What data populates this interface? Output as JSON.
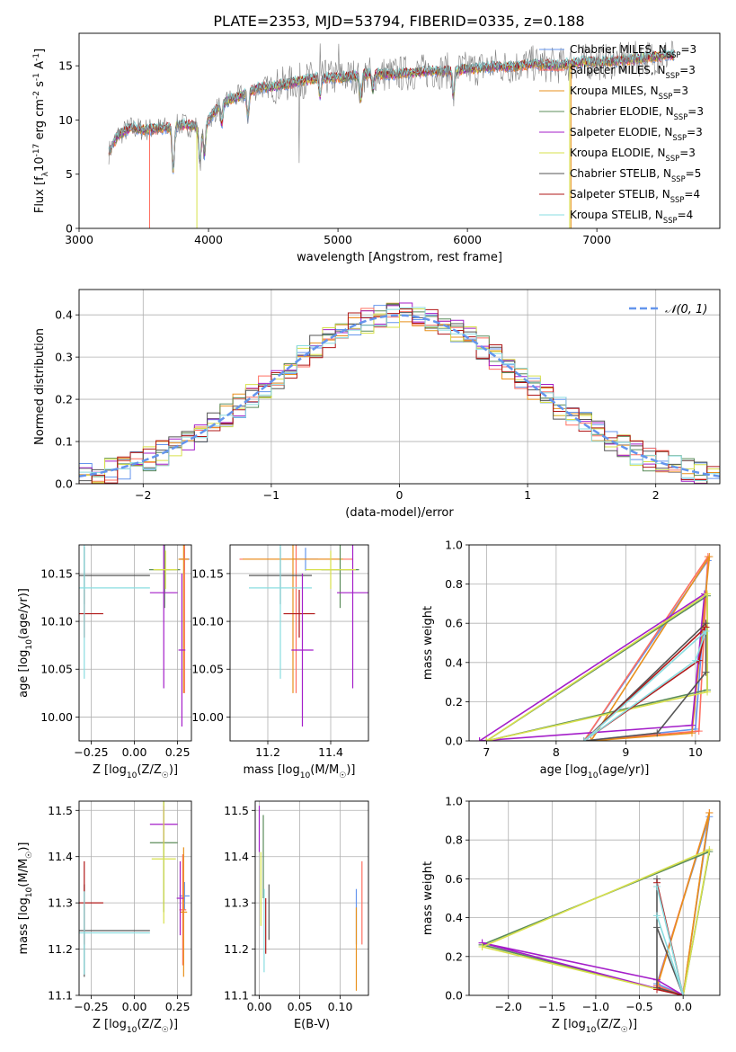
{
  "chart_data": [
    {
      "id": "spectrum",
      "type": "line",
      "title": "PLATE=2353, MJD=53794, FIBERID=0335, z=0.188",
      "xlabel": "wavelength [Angstrom, rest frame]",
      "ylabel": "Flux [f_λ10^-17 erg cm^-2 s^-1 A^-1]",
      "xlim": [
        3000,
        7950
      ],
      "ylim": [
        0,
        18
      ],
      "xticks": [
        3000,
        4000,
        5000,
        6000,
        7000
      ],
      "yticks": [
        0,
        5,
        10,
        15
      ],
      "grid": false,
      "legend_position": "right",
      "data_color": "#808080",
      "series": [
        {
          "name": "Chabrier MILES, N_SSP=3",
          "color": "#6495ed"
        },
        {
          "name": "Salpeter MILES, N_SSP=3",
          "color": "#ff6f61"
        },
        {
          "name": "Kroupa MILES, N_SSP=3",
          "color": "#e8901c"
        },
        {
          "name": "Chabrier ELODIE, N_SSP=3",
          "color": "#5b8c5a"
        },
        {
          "name": "Salpeter ELODIE, N_SSP=3",
          "color": "#a41ec9"
        },
        {
          "name": "Kroupa ELODIE, N_SSP=3",
          "color": "#d7e04b"
        },
        {
          "name": "Chabrier STELIB, N_SSP=5",
          "color": "#555555"
        },
        {
          "name": "Salpeter STELIB, N_SSP=4",
          "color": "#b01818"
        },
        {
          "name": "Kroupa STELIB, N_SSP=4",
          "color": "#8adde0"
        }
      ],
      "continuum": {
        "x": [
          3230,
          3300,
          3400,
          3500,
          3600,
          3700,
          3800,
          3900,
          3950,
          4000,
          4100,
          4200,
          4300,
          4400,
          4500,
          4600,
          4700,
          4800,
          4900,
          5000,
          5100,
          5200,
          5300,
          5400,
          5500,
          5600,
          5700,
          5800,
          5900,
          6000,
          6100,
          6200,
          6300,
          6400,
          6500,
          6600,
          6700,
          6800,
          6900,
          7000,
          7100,
          7200,
          7300,
          7400,
          7500,
          7600
        ],
        "y": [
          7.0,
          8.6,
          9.3,
          9.1,
          9.2,
          9.3,
          9.6,
          9.4,
          9.0,
          10.0,
          11.6,
          12.0,
          12.5,
          13.0,
          13.1,
          13.3,
          13.6,
          13.8,
          13.9,
          13.9,
          14.0,
          14.2,
          14.3,
          14.2,
          14.3,
          14.4,
          14.5,
          14.5,
          14.6,
          14.7,
          14.8,
          15.0,
          14.9,
          15.0,
          15.2,
          15.1,
          15.0,
          15.2,
          15.4,
          15.3,
          15.4,
          15.5,
          15.6,
          15.8,
          15.9,
          16.0
        ]
      }
    },
    {
      "id": "residuals",
      "type": "step",
      "title": "",
      "xlabel": "(data-model)/error",
      "ylabel": "Normed distribution",
      "xlim": [
        -2.5,
        2.5
      ],
      "ylim": [
        0,
        0.46
      ],
      "xticks": [
        -2,
        -1,
        0,
        1,
        2
      ],
      "yticks": [
        0.0,
        0.1,
        0.2,
        0.3,
        0.4
      ],
      "grid": true,
      "legend_position": "top-right",
      "reference": {
        "name": "𝒩(0, 1)",
        "mean": 0,
        "sigma": 1,
        "color": "#6495ed"
      }
    },
    {
      "id": "age-vs-Z",
      "type": "errorbar",
      "xlabel": "Z [log10(Z/Z☉)]",
      "ylabel": "age  [log10(age/yr)]",
      "xlim": [
        -0.32,
        0.33
      ],
      "ylim": [
        9.975,
        10.18
      ],
      "xticks": [
        -0.25,
        0.0,
        0.25
      ],
      "yticks": [
        10.0,
        10.05,
        10.1,
        10.15
      ],
      "grid": true,
      "points": [
        {
          "series": "Chabrier MILES, N_SSP=3",
          "x": 0.29,
          "xerr": 0.03,
          "y": 10.165,
          "yerr": 0.012
        },
        {
          "series": "Salpeter MILES, N_SSP=3",
          "x": 0.29,
          "xerr": 0.025,
          "y": 10.165,
          "yerr": 0.14
        },
        {
          "series": "Kroupa MILES, N_SSP=3",
          "x": 0.285,
          "xerr": 0.03,
          "y": 10.165,
          "yerr": 0.14
        },
        {
          "series": "Chabrier ELODIE, N_SSP=3",
          "x": 0.175,
          "xerr": 0.09,
          "y": 10.154,
          "yerr": 0.04
        },
        {
          "series": "Salpeter ELODIE, N_SSP=3",
          "x": 0.17,
          "xerr": 0.08,
          "y": 10.13,
          "yerr": 0.1
        },
        {
          "series": "Kroupa ELODIE, N_SSP=3",
          "x": 0.18,
          "xerr": 0.07,
          "y": 10.154,
          "yerr": 0.02
        },
        {
          "series": "Chabrier STELIB, N_SSP=5",
          "x": -0.29,
          "xerr": 0.38,
          "y": 10.148,
          "yerr": 0.03
        },
        {
          "series": "Salpeter STELIB, N_SSP=4",
          "x": -0.29,
          "xerr": 0.11,
          "y": 10.108,
          "yerr": 0.025
        },
        {
          "series": "Kroupa STELIB, N_SSP=4",
          "x": -0.29,
          "xerr": 0.38,
          "y": 10.135,
          "yerr": 0.095
        },
        {
          "series": "Salpeter ELODIE, N_SSP=3",
          "x": 0.275,
          "xerr": 0.02,
          "y": 10.07,
          "yerr": 0.08
        }
      ]
    },
    {
      "id": "age-vs-mass",
      "type": "errorbar",
      "xlabel": "mass [log10(M/M☉)]",
      "ylabel": "",
      "xlim": [
        11.08,
        11.52
      ],
      "ylim": [
        9.975,
        10.18
      ],
      "xticks": [
        11.2,
        11.4
      ],
      "yticks": [
        10.0,
        10.05,
        10.1,
        10.15
      ],
      "grid": true,
      "points": [
        {
          "series": "Chabrier MILES, N_SSP=3",
          "x": 11.32,
          "xerr": 0.04,
          "y": 10.165,
          "yerr": 0.012
        },
        {
          "series": "Salpeter MILES, N_SSP=3",
          "x": 11.29,
          "xerr": 0.18,
          "y": 10.165,
          "yerr": 0.14
        },
        {
          "series": "Kroupa MILES, N_SSP=3",
          "x": 11.28,
          "xerr": 0.16,
          "y": 10.165,
          "yerr": 0.14
        },
        {
          "series": "Chabrier ELODIE, N_SSP=3",
          "x": 11.43,
          "xerr": 0.06,
          "y": 10.154,
          "yerr": 0.04
        },
        {
          "series": "Salpeter ELODIE, N_SSP=3",
          "x": 11.47,
          "xerr": 0.05,
          "y": 10.13,
          "yerr": 0.1
        },
        {
          "series": "Kroupa ELODIE, N_SSP=3",
          "x": 11.4,
          "xerr": 0.08,
          "y": 10.154,
          "yerr": 0.02
        },
        {
          "series": "Chabrier STELIB, N_SSP=5",
          "x": 11.24,
          "xerr": 0.1,
          "y": 10.148,
          "yerr": 0.03
        },
        {
          "series": "Salpeter STELIB, N_SSP=4",
          "x": 11.3,
          "xerr": 0.05,
          "y": 10.108,
          "yerr": 0.025
        },
        {
          "series": "Kroupa STELIB, N_SSP=4",
          "x": 11.24,
          "xerr": 0.1,
          "y": 10.135,
          "yerr": 0.095
        },
        {
          "series": "Salpeter ELODIE, N_SSP=3",
          "x": 11.31,
          "xerr": 0.035,
          "y": 10.07,
          "yerr": 0.08
        }
      ]
    },
    {
      "id": "weight-vs-age",
      "type": "line",
      "xlabel": "age  [log10(age/yr)]",
      "ylabel": "mass weight",
      "xlim": [
        6.75,
        10.35
      ],
      "ylim": [
        0,
        1
      ],
      "xticks": [
        7,
        8,
        9,
        10
      ],
      "yticks": [
        0.0,
        0.2,
        0.4,
        0.6,
        0.8,
        1.0
      ],
      "grid": true,
      "series": [
        {
          "name": "Chabrier MILES, N_SSP=3",
          "x": [
            8.4,
            10.0,
            10.18,
            8.4
          ],
          "y": [
            0.0,
            0.06,
            0.92,
            0.0
          ]
        },
        {
          "name": "Salpeter MILES, N_SSP=3",
          "x": [
            8.4,
            10.05,
            10.18,
            8.4
          ],
          "y": [
            0.0,
            0.05,
            0.94,
            0.0
          ]
        },
        {
          "name": "Kroupa MILES, N_SSP=3",
          "x": [
            8.5,
            9.95,
            10.2,
            8.5
          ],
          "y": [
            0.0,
            0.04,
            0.94,
            0.0
          ]
        },
        {
          "name": "Chabrier ELODIE, N_SSP=3",
          "x": [
            7.0,
            10.17,
            10.17,
            7.0
          ],
          "y": [
            0.0,
            0.74,
            0.26,
            0.0
          ]
        },
        {
          "name": "Salpeter ELODIE, N_SSP=3",
          "x": [
            6.9,
            9.95,
            10.13,
            6.9
          ],
          "y": [
            0.0,
            0.08,
            0.75,
            0.0
          ]
        },
        {
          "name": "Kroupa ELODIE, N_SSP=3",
          "x": [
            7.0,
            10.17,
            10.17,
            7.0
          ],
          "y": [
            0.0,
            0.75,
            0.25,
            0.0
          ]
        },
        {
          "name": "Chabrier STELIB, N_SSP=5",
          "x": [
            8.4,
            9.45,
            10.15,
            10.15,
            8.4
          ],
          "y": [
            0.0,
            0.04,
            0.35,
            0.6,
            0.0
          ]
        },
        {
          "name": "Salpeter STELIB, N_SSP=4",
          "x": [
            8.4,
            10.05,
            10.15,
            8.4
          ],
          "y": [
            0.0,
            0.41,
            0.58,
            0.0
          ]
        },
        {
          "name": "Kroupa STELIB, N_SSP=4",
          "x": [
            8.4,
            10.0,
            10.15,
            8.4
          ],
          "y": [
            0.0,
            0.41,
            0.56,
            0.0
          ]
        }
      ]
    },
    {
      "id": "mass-vs-Z",
      "type": "errorbar",
      "xlabel": "Z [log10(Z/Z☉)]",
      "ylabel": "mass [log10(M/M☉)]",
      "xlim": [
        -0.32,
        0.33
      ],
      "ylim": [
        11.1,
        11.52
      ],
      "xticks": [
        -0.25,
        0.0,
        0.25
      ],
      "yticks": [
        11.1,
        11.2,
        11.3,
        11.4,
        11.5
      ],
      "grid": true,
      "points": [
        {
          "series": "Chabrier MILES, N_SSP=3",
          "x": 0.29,
          "xerr": 0.03,
          "y": 11.315,
          "yerr": 0.03
        },
        {
          "series": "Salpeter MILES, N_SSP=3",
          "x": 0.28,
          "xerr": 0.02,
          "y": 11.285,
          "yerr": 0.12
        },
        {
          "series": "Kroupa MILES, N_SSP=3",
          "x": 0.285,
          "xerr": 0.02,
          "y": 11.28,
          "yerr": 0.14
        },
        {
          "series": "Chabrier ELODIE, N_SSP=3",
          "x": 0.17,
          "xerr": 0.08,
          "y": 11.43,
          "yerr": 0.15
        },
        {
          "series": "Salpeter ELODIE, N_SSP=3",
          "x": 0.17,
          "xerr": 0.08,
          "y": 11.47,
          "yerr": 0.04
        },
        {
          "series": "Kroupa ELODIE, N_SSP=3",
          "x": 0.17,
          "xerr": 0.07,
          "y": 11.395,
          "yerr": 0.14
        },
        {
          "series": "Chabrier STELIB, N_SSP=5",
          "x": -0.29,
          "xerr": 0.38,
          "y": 11.24,
          "yerr": 0.1
        },
        {
          "series": "Salpeter STELIB, N_SSP=4",
          "x": -0.29,
          "xerr": 0.11,
          "y": 11.3,
          "yerr": 0.09
        },
        {
          "series": "Kroupa STELIB, N_SSP=4",
          "x": -0.29,
          "xerr": 0.38,
          "y": 11.235,
          "yerr": 0.09
        },
        {
          "series": "Salpeter ELODIE, N_SSP=3",
          "x": 0.265,
          "xerr": 0.02,
          "y": 11.31,
          "yerr": 0.08
        }
      ]
    },
    {
      "id": "mass-vs-EBV",
      "type": "errorbar",
      "xlabel": "E(B-V)",
      "ylabel": "",
      "xlim": [
        -0.005,
        0.135
      ],
      "ylim": [
        11.1,
        11.52
      ],
      "xticks": [
        0.0,
        0.05,
        0.1
      ],
      "yticks": [
        11.1,
        11.2,
        11.3,
        11.4,
        11.5
      ],
      "grid": true,
      "points": [
        {
          "series": "Chabrier MILES, N_SSP=3",
          "x": 0.12,
          "xerr": 0,
          "y": 11.27,
          "yerr": 0.06
        },
        {
          "series": "Salpeter MILES, N_SSP=3",
          "x": 0.127,
          "xerr": 0,
          "y": 11.3,
          "yerr": 0.09
        },
        {
          "series": "Kroupa MILES, N_SSP=3",
          "x": 0.12,
          "xerr": 0,
          "y": 11.2,
          "yerr": 0.09
        },
        {
          "series": "Chabrier ELODIE, N_SSP=3",
          "x": 0.005,
          "xerr": 0,
          "y": 11.4,
          "yerr": 0.09
        },
        {
          "series": "Salpeter ELODIE, N_SSP=3",
          "x": 0.0,
          "xerr": 0,
          "y": 11.46,
          "yerr": 0.05
        },
        {
          "series": "Kroupa ELODIE, N_SSP=3",
          "x": 0.002,
          "xerr": 0,
          "y": 11.33,
          "yerr": 0.08
        },
        {
          "series": "Chabrier STELIB, N_SSP=5",
          "x": 0.012,
          "xerr": 0,
          "y": 11.28,
          "yerr": 0.06
        },
        {
          "series": "Salpeter STELIB, N_SSP=4",
          "x": 0.008,
          "xerr": 0,
          "y": 11.25,
          "yerr": 0.06
        },
        {
          "series": "Kroupa STELIB, N_SSP=4",
          "x": 0.006,
          "xerr": 0,
          "y": 11.24,
          "yerr": 0.09
        }
      ]
    },
    {
      "id": "weight-vs-Z",
      "type": "line",
      "xlabel": "Z [log10(Z/Z☉)]",
      "ylabel": "mass weight",
      "xlim": [
        -2.45,
        0.42
      ],
      "ylim": [
        0,
        1
      ],
      "xticks": [
        -2.0,
        -1.5,
        -1.0,
        -0.5,
        0.0
      ],
      "yticks": [
        0.0,
        0.2,
        0.4,
        0.6,
        0.8,
        1.0
      ],
      "grid": true,
      "series": [
        {
          "name": "Chabrier MILES, N_SSP=3",
          "x": [
            -0.3,
            0.0,
            0.3,
            -0.3
          ],
          "y": [
            0.06,
            0.0,
            0.92,
            0.06
          ]
        },
        {
          "name": "Salpeter MILES, N_SSP=3",
          "x": [
            -0.3,
            0.0,
            0.3,
            -0.3
          ],
          "y": [
            0.05,
            0.0,
            0.94,
            0.05
          ]
        },
        {
          "name": "Kroupa MILES, N_SSP=3",
          "x": [
            -0.3,
            0.0,
            0.3,
            -0.3
          ],
          "y": [
            0.04,
            0.0,
            0.94,
            0.04
          ]
        },
        {
          "name": "Chabrier ELODIE, N_SSP=3",
          "x": [
            -2.3,
            0.0,
            0.3,
            -2.3
          ],
          "y": [
            0.26,
            0.0,
            0.74,
            0.26
          ]
        },
        {
          "name": "Salpeter ELODIE, N_SSP=3",
          "x": [
            -2.3,
            -0.3,
            0.0,
            -2.3
          ],
          "y": [
            0.27,
            0.08,
            0.0,
            0.27
          ]
        },
        {
          "name": "Kroupa ELODIE, N_SSP=3",
          "x": [
            -2.3,
            0.0,
            0.3,
            -2.3
          ],
          "y": [
            0.25,
            0.0,
            0.75,
            0.25
          ]
        },
        {
          "name": "Chabrier STELIB, N_SSP=5",
          "x": [
            -0.3,
            -0.3,
            0.0,
            -0.3
          ],
          "y": [
            0.6,
            0.04,
            0.0,
            0.35
          ]
        },
        {
          "name": "Salpeter STELIB, N_SSP=4",
          "x": [
            -0.3,
            0.0,
            -0.3
          ],
          "y": [
            0.58,
            0.0,
            0.03
          ]
        },
        {
          "name": "Kroupa STELIB, N_SSP=4",
          "x": [
            -0.3,
            0.0,
            -0.3
          ],
          "y": [
            0.41,
            0.0,
            0.56
          ]
        }
      ]
    }
  ]
}
